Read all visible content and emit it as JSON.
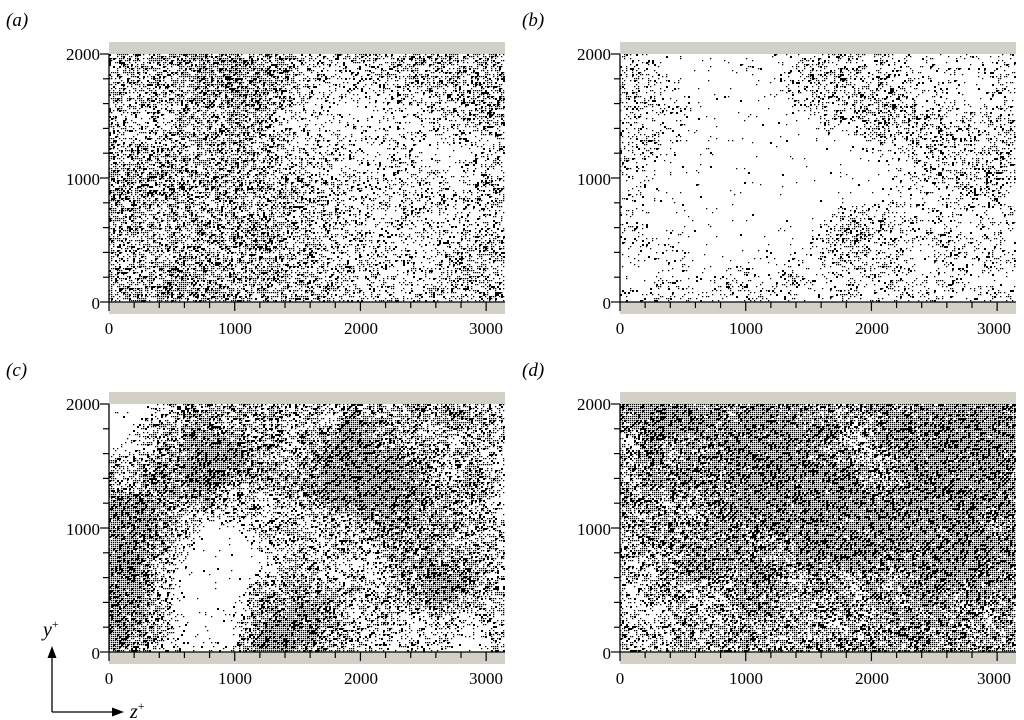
{
  "panels": [
    {
      "label": "(a)",
      "axes": {
        "x_min": 0,
        "x_max": 3150,
        "y_min": 0,
        "y_max": 2000
      },
      "x_ticks": [
        "0",
        "1000",
        "2000",
        "3000"
      ],
      "y_ticks": [
        "0",
        "1000",
        "2000"
      ],
      "particle_density": "high",
      "tone": "mostly black speckle, fine filamentary structures"
    },
    {
      "label": "(b)",
      "axes": {
        "x_min": 0,
        "x_max": 3150,
        "y_min": 0,
        "y_max": 2000
      },
      "x_ticks": [
        "0",
        "1000",
        "2000",
        "3000"
      ],
      "y_ticks": [
        "0",
        "1000",
        "2000"
      ],
      "particle_density": "low",
      "tone": "mostly white with sparse dark filaments"
    },
    {
      "label": "(c)",
      "axes": {
        "x_min": 0,
        "x_max": 3150,
        "y_min": 0,
        "y_max": 2000
      },
      "x_ticks": [
        "0",
        "1000",
        "2000",
        "3000"
      ],
      "y_ticks": [
        "0",
        "1000",
        "2000"
      ],
      "particle_density": "medium",
      "tone": "large-scale clustered black and white patches"
    },
    {
      "label": "(d)",
      "axes": {
        "x_min": 0,
        "x_max": 3150,
        "y_min": 0,
        "y_max": 2000
      },
      "x_ticks": [
        "0",
        "1000",
        "2000",
        "3000"
      ],
      "y_ticks": [
        "0",
        "1000",
        "2000"
      ],
      "particle_density": "very high",
      "tone": "predominantly black with white voids"
    }
  ],
  "axis_indicator": {
    "y_label": "y",
    "z_label": "z",
    "superscript": "+"
  },
  "colors": {
    "particle": "#000000",
    "wall": "#d3d0c8",
    "background": "#ffffff"
  }
}
